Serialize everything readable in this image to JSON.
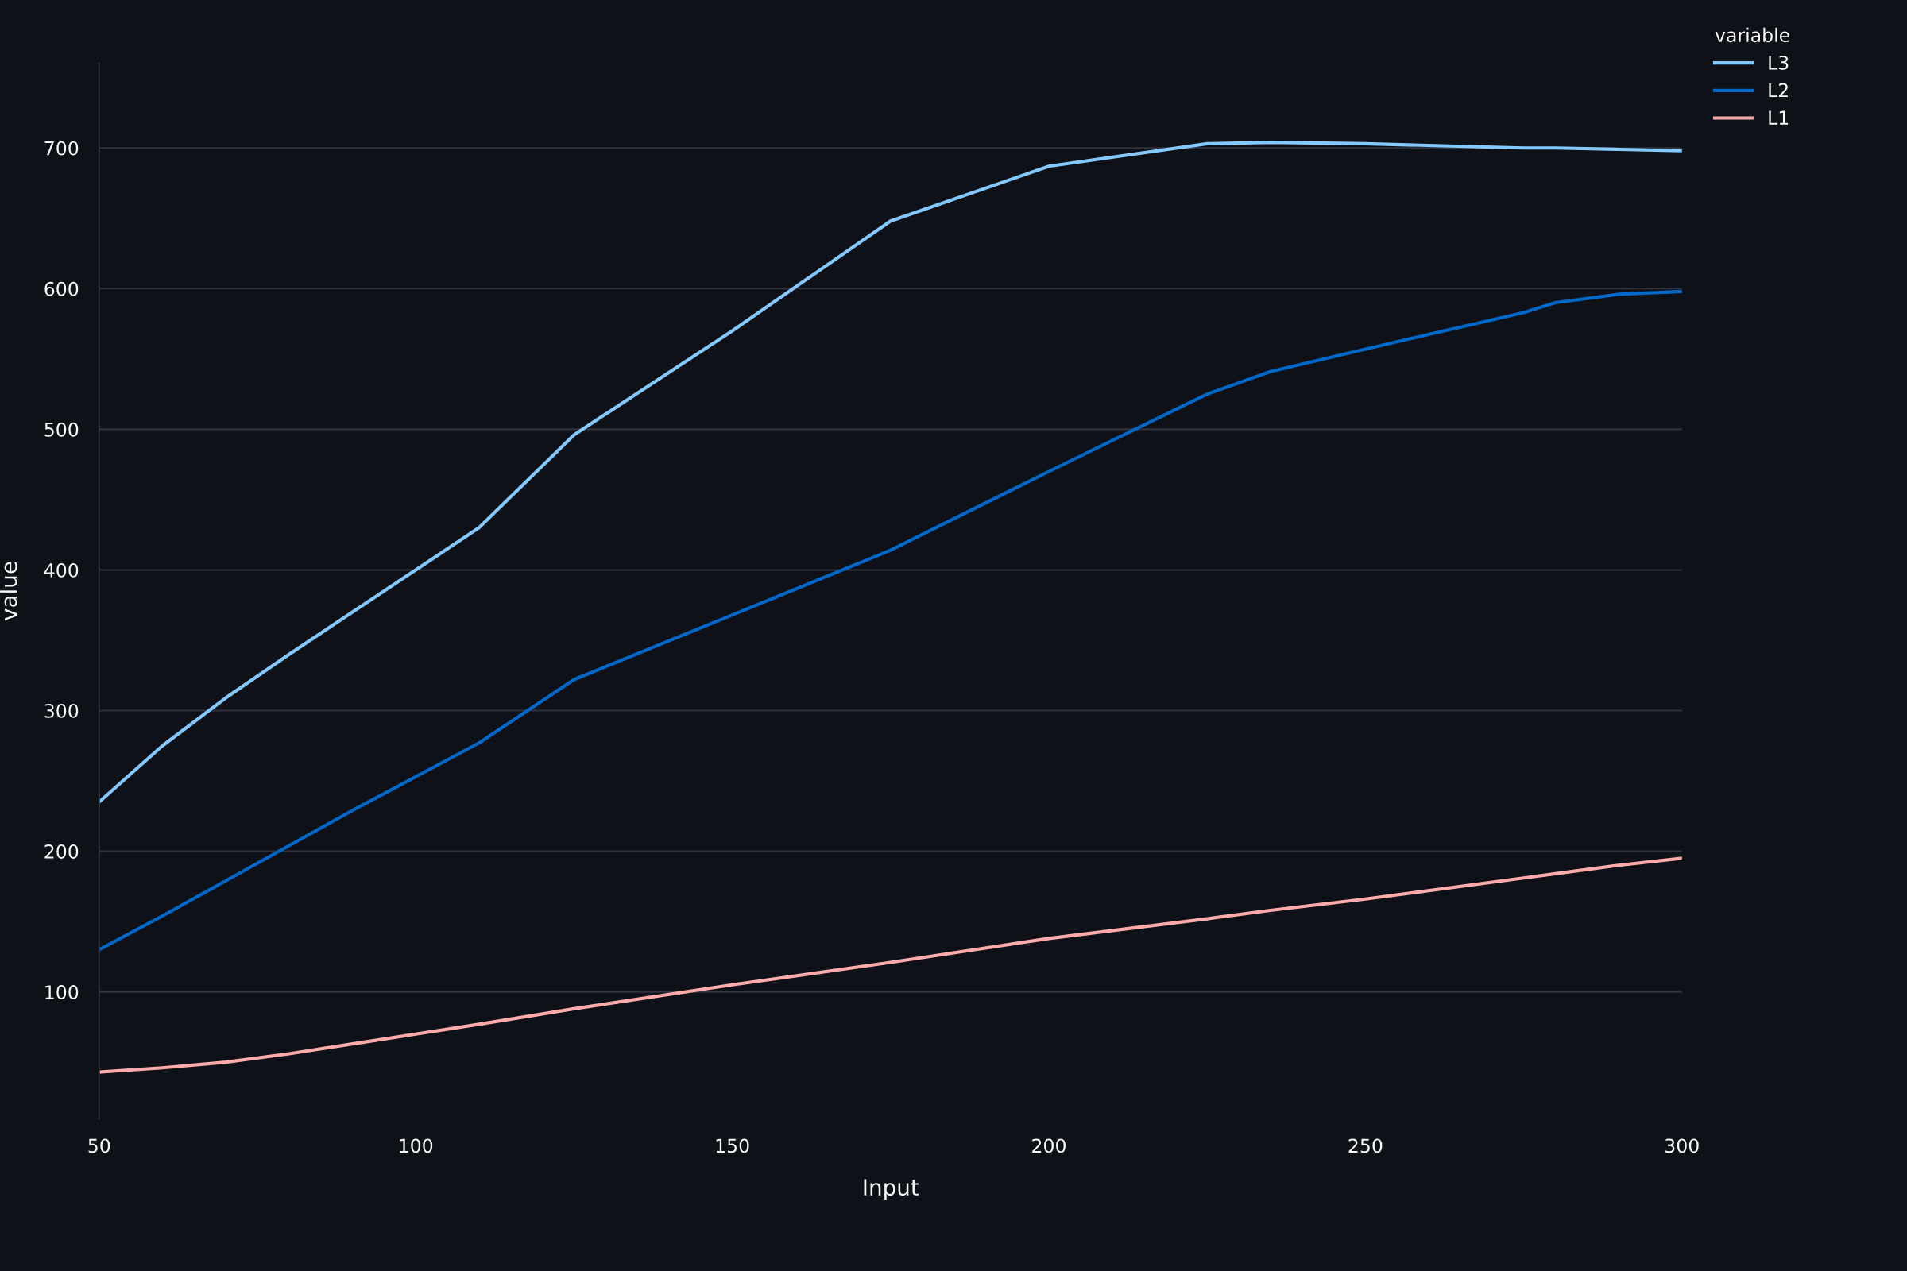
{
  "chart_data": {
    "type": "line",
    "xlabel": "Input",
    "ylabel": "value",
    "legend_title": "variable",
    "legend": "top right",
    "ylim": [
      10,
      760
    ],
    "grid": "y",
    "xlim": [
      50,
      300
    ],
    "xticks": [
      50,
      100,
      150,
      200,
      250,
      300
    ],
    "yticks": [
      100,
      200,
      300,
      400,
      500,
      600,
      700
    ],
    "line_style": "solid",
    "marker": "none",
    "x": [
      50,
      60,
      70,
      80,
      90,
      100,
      110,
      125,
      150,
      175,
      200,
      225,
      235,
      250,
      275,
      280,
      290,
      300
    ],
    "series": [
      {
        "name": "L3",
        "color": "#83c9ff",
        "values": [
          235,
          275,
          309,
          340,
          370,
          400,
          430,
          496,
          570,
          648,
          687,
          703,
          704,
          703,
          700,
          700,
          699,
          698
        ]
      },
      {
        "name": "L2",
        "color": "#0068c9",
        "values": [
          130,
          154,
          179,
          204,
          229,
          253,
          277,
          322,
          368,
          414,
          470,
          525,
          541,
          557,
          583,
          590,
          596,
          598
        ]
      },
      {
        "name": "L1",
        "color": "#ffabab",
        "values": [
          43,
          46,
          50,
          56,
          63,
          70,
          77,
          88,
          105,
          121,
          138,
          152,
          158,
          166,
          181,
          184,
          190,
          195
        ]
      }
    ]
  }
}
